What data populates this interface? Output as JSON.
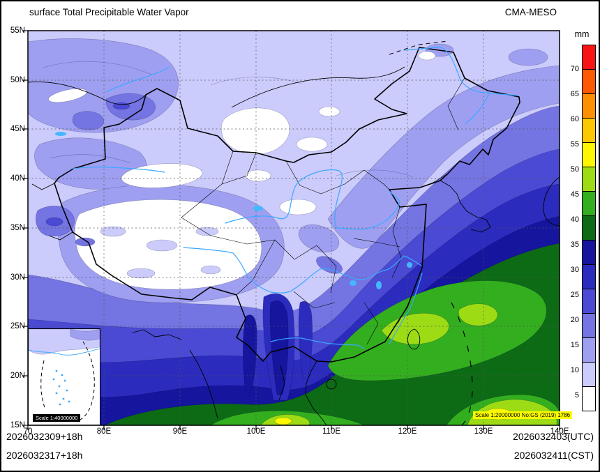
{
  "header": {
    "title": "surface Total Precipitable Water Vapor",
    "model": "CMA-MESO"
  },
  "footer": {
    "left_line1": "2026032309+18h",
    "left_line2": "2026032317+18h",
    "right_line1": "2026032403(UTC)",
    "right_line2": "2026032411(CST)"
  },
  "map": {
    "x_ticks": [
      "70",
      "80E",
      "90E",
      "100E",
      "110E",
      "120E",
      "130E",
      "140E"
    ],
    "y_ticks": [
      "55N",
      "50N",
      "45N",
      "40N",
      "35N",
      "30N",
      "25N",
      "20N",
      "15N"
    ],
    "scale_note_main": "Scale 1:20000000 No:GS (2019) 1786",
    "scale_note_inset": "Scale 1:40000000"
  },
  "colorbar": {
    "unit": "mm",
    "levels": [
      5,
      10,
      15,
      20,
      25,
      30,
      35,
      40,
      45,
      50,
      55,
      60,
      65,
      70
    ],
    "colors": [
      "#ffffff",
      "#cbcbfc",
      "#9f9ff1",
      "#7474e2",
      "#4a4ad4",
      "#2b2bbe",
      "#15159e",
      "#0d6b16",
      "#33ae1f",
      "#9ddc15",
      "#fdf802",
      "#fdc802",
      "#fd9002",
      "#fd5a02",
      "#f81414"
    ]
  },
  "chart_data": {
    "type": "heatmap",
    "title": "surface Total Precipitable Water Vapor",
    "model": "CMA-MESO",
    "units": "mm",
    "xlabel": "longitude",
    "ylabel": "latitude",
    "lon_range": [
      70,
      140
    ],
    "lat_range": [
      15,
      55
    ],
    "grid_lines": "dashed",
    "legend_position": "right",
    "contour_levels": [
      5,
      10,
      15,
      20,
      25,
      30,
      35,
      40,
      45,
      50,
      55,
      60,
      65,
      70
    ],
    "palette": [
      "#ffffff",
      "#cbcbfc",
      "#9f9ff1",
      "#7474e2",
      "#4a4ad4",
      "#2b2bbe",
      "#15159e",
      "#0d6b16",
      "#33ae1f",
      "#9ddc15",
      "#fdf802",
      "#fdc802",
      "#fd9002",
      "#fd5a02",
      "#f81414"
    ],
    "grid": {
      "lons": [
        70,
        80,
        90,
        100,
        110,
        120,
        130,
        140
      ],
      "lats": [
        55,
        50,
        45,
        40,
        35,
        30,
        25,
        20,
        15
      ],
      "values_mm": [
        [
          7,
          7,
          7,
          7,
          7,
          8,
          8,
          8
        ],
        [
          12,
          12,
          8,
          7,
          8,
          10,
          12,
          10
        ],
        [
          12,
          15,
          10,
          8,
          8,
          12,
          15,
          15
        ],
        [
          10,
          8,
          7,
          5,
          10,
          17,
          20,
          22
        ],
        [
          15,
          5,
          4,
          8,
          15,
          22,
          27,
          30
        ],
        [
          22,
          12,
          5,
          17,
          27,
          32,
          35,
          37
        ],
        [
          27,
          25,
          22,
          30,
          38,
          42,
          37,
          32
        ],
        [
          30,
          33,
          28,
          35,
          42,
          37,
          35,
          40
        ],
        [
          32,
          35,
          33,
          45,
          47,
          40,
          47,
          42
        ]
      ]
    }
  }
}
